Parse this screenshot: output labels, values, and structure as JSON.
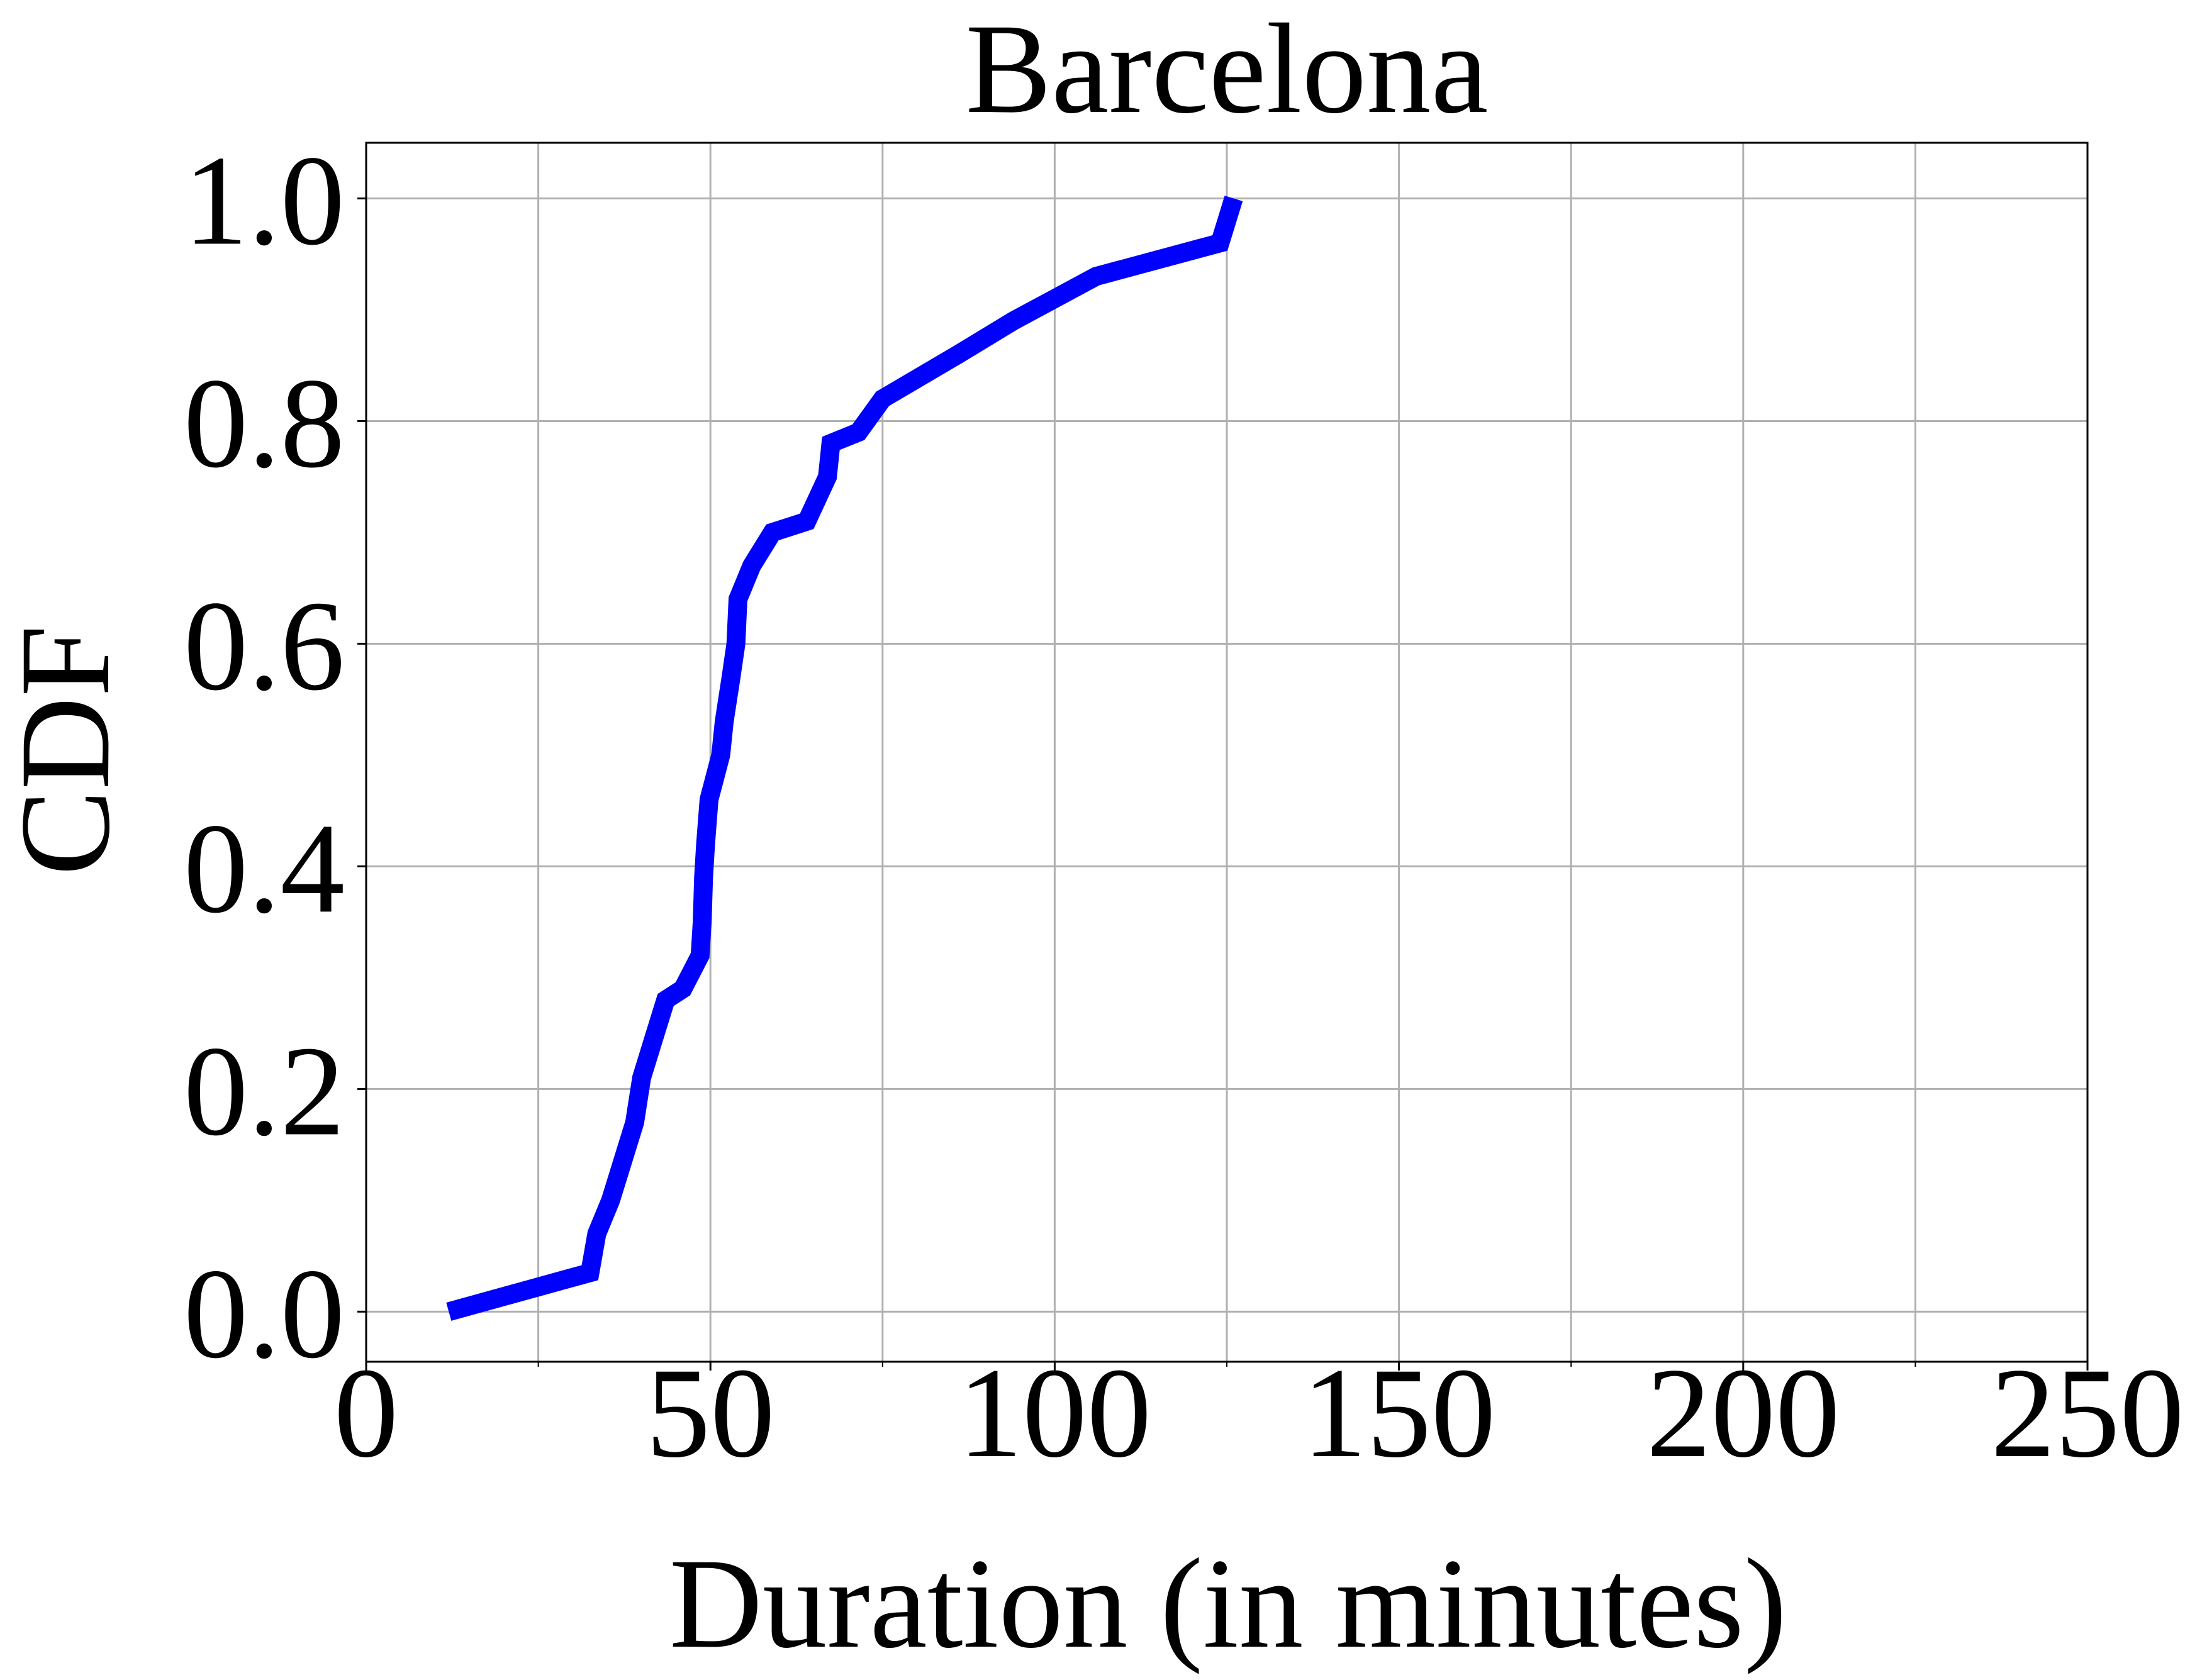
{
  "chart_data": {
    "type": "line",
    "title": "Barcelona",
    "xlabel": "Duration (in minutes)",
    "ylabel": "CDF",
    "xlim": [
      0,
      250
    ],
    "ylim": [
      -0.045,
      1.05
    ],
    "xticks": [
      0,
      50,
      100,
      150,
      200,
      250
    ],
    "xtick_labels": [
      "0",
      "50",
      "100",
      "150",
      "200",
      "250"
    ],
    "yticks": [
      0.0,
      0.2,
      0.4,
      0.6,
      0.8,
      1.0
    ],
    "ytick_labels": [
      "0.0",
      "0.2",
      "0.4",
      "0.6",
      "0.8",
      "1.0"
    ],
    "x_minor_ticks": [
      25,
      75,
      125,
      175,
      225
    ],
    "grid": true,
    "line_color": "#0000ff",
    "series": [
      {
        "x": [
          12,
          32.5,
          33.5,
          35.5,
          37.5,
          39,
          40,
          42,
          43.5,
          46,
          48.5,
          48.8,
          49,
          49.3,
          49.8,
          51.5,
          52,
          53,
          53.7,
          54,
          56,
          59,
          64,
          67,
          67.5,
          71.5,
          75,
          86,
          94,
          106,
          124,
          126
        ],
        "y": [
          0.0,
          0.035,
          0.07,
          0.1,
          0.14,
          0.17,
          0.21,
          0.25,
          0.28,
          0.29,
          0.32,
          0.35,
          0.39,
          0.42,
          0.46,
          0.5,
          0.53,
          0.57,
          0.6,
          0.64,
          0.67,
          0.7,
          0.71,
          0.75,
          0.78,
          0.79,
          0.82,
          0.86,
          0.89,
          0.93,
          0.96,
          1.0
        ]
      }
    ]
  }
}
